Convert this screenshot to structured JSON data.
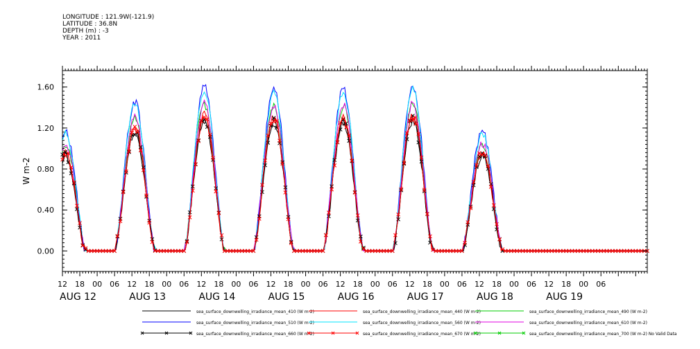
{
  "header": {
    "longitude": "LONGITUDE : 121.9W(-121.9)",
    "latitude": "LATITUDE : 36.8N",
    "depth": "DEPTH (m) : -3",
    "year": "YEAR : 2011"
  },
  "chart_data": {
    "type": "line",
    "title": "",
    "ylabel": "W m-2",
    "xlabel": "",
    "ylim": [
      -0.2,
      1.76
    ],
    "yticks": [
      0.0,
      0.4,
      0.8,
      1.2,
      1.6
    ],
    "ytick_labels": [
      "0.00",
      "0.40",
      "0.80",
      "1.20",
      "1.60"
    ],
    "xlim_hours": [
      0,
      202
    ],
    "x_hour_ticks": [
      "12",
      "18",
      "00",
      "06",
      "12",
      "18",
      "00",
      "06",
      "12",
      "18",
      "00",
      "06",
      "12",
      "18",
      "00",
      "06",
      "12",
      "18",
      "00",
      "06",
      "12",
      "18",
      "00",
      "06",
      "12",
      "18",
      "00",
      "06",
      "12",
      "18",
      "00",
      "06"
    ],
    "x_day_labels": [
      "AUG 12",
      "AUG 13",
      "AUG 14",
      "AUG 15",
      "AUG 16",
      "AUG 17",
      "AUG 18",
      "AUG 19"
    ],
    "x_day_label_hours": [
      0,
      0,
      0,
      0,
      0,
      0,
      0,
      0
    ],
    "day_peaks": [
      {
        "day": "AUG 12",
        "peak": 0.95
      },
      {
        "day": "AUG 13",
        "peak": 1.18
      },
      {
        "day": "AUG 14",
        "peak": 1.3
      },
      {
        "day": "AUG 15",
        "peak": 1.28
      },
      {
        "day": "AUG 16",
        "peak": 1.28
      },
      {
        "day": "AUG 17",
        "peak": 1.3
      },
      {
        "day": "AUG 18",
        "peak": 0.95
      }
    ],
    "series": [
      {
        "name": "sea_surface_downwelling_irradiance_mean_410 (W m-2)",
        "color": "#000000",
        "scale": 0.98,
        "marker": "none"
      },
      {
        "name": "sea_surface_downwelling_irradiance_mean_440 (W m-2)",
        "color": "#ff0000",
        "scale": 1.02,
        "marker": "none"
      },
      {
        "name": "sea_surface_downwelling_irradiance_mean_490 (W m-2)",
        "color": "#00cc00",
        "scale": 1.1,
        "marker": "none"
      },
      {
        "name": "sea_surface_downwelling_irradiance_mean_510 (W m-2)",
        "color": "#0000ff",
        "scale": 1.23,
        "marker": "none"
      },
      {
        "name": "sea_surface_downwelling_irradiance_mean_560 (W m-2)",
        "color": "#00e5ff",
        "scale": 1.21,
        "marker": "none"
      },
      {
        "name": "sea_surface_downwelling_irradiance_mean_610 (W m-2)",
        "color": "#e000e0",
        "scale": 1.11,
        "marker": "none"
      },
      {
        "name": "sea_surface_downwelling_irradiance_mean_660 (W m-2)",
        "color": "#000000",
        "scale": 0.99,
        "marker": "x"
      },
      {
        "name": "sea_surface_downwelling_irradiance_mean_670 (W m-2)",
        "color": "#ff0000",
        "scale": 1.01,
        "marker": "x"
      },
      {
        "name": "sea_surface_downwelling_irradiance_mean_700 (W m-2) No Valid Data",
        "color": "#00cc00",
        "scale": 0,
        "marker": "x"
      }
    ],
    "grid": false,
    "legend_position": "bottom"
  }
}
